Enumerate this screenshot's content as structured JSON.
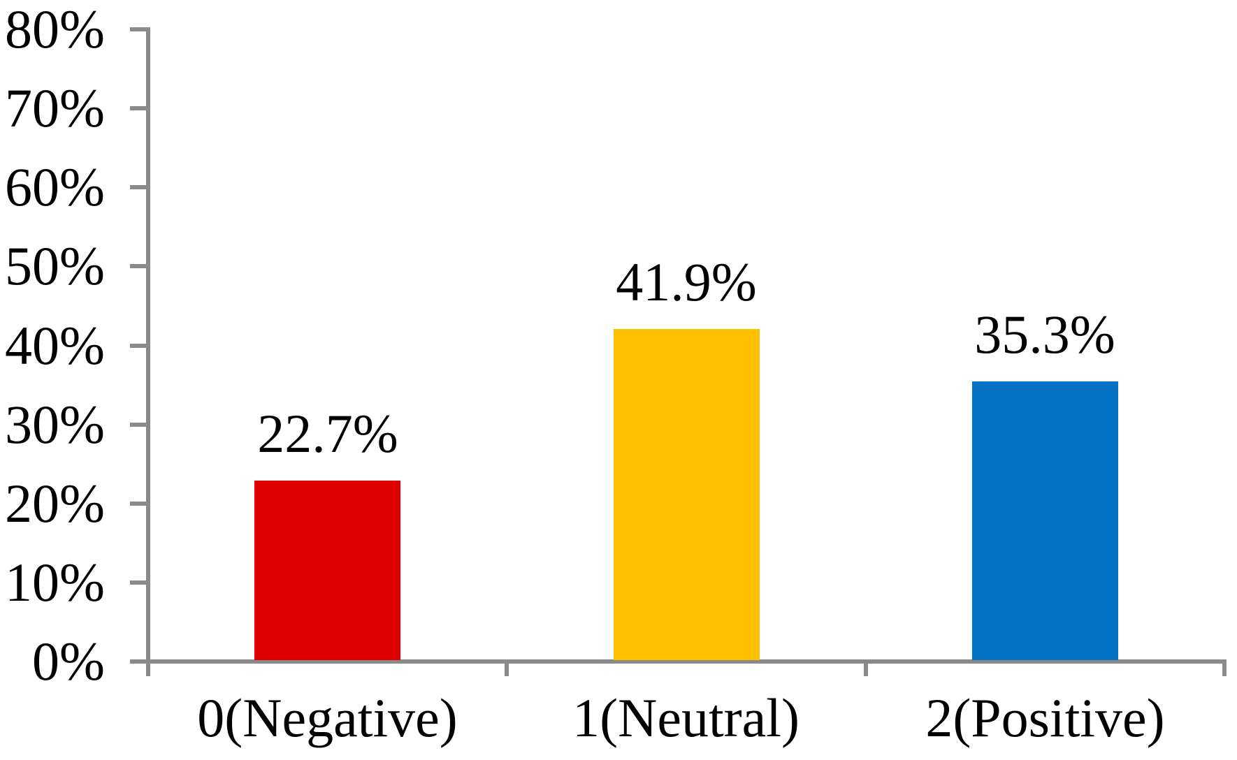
{
  "chart_data": {
    "type": "bar",
    "title": "",
    "xlabel": "",
    "ylabel": "",
    "categories": [
      "0(Negative)",
      "1(Neutral)",
      "2(Positive)"
    ],
    "values": [
      22.7,
      41.9,
      35.3
    ],
    "value_labels": [
      "22.7%",
      "41.9%",
      "35.3%"
    ],
    "bar_colors": [
      "#DE0000",
      "#FFC000",
      "#0571C4"
    ],
    "ylim": [
      0,
      80
    ],
    "ytick_step": 10,
    "ytick_labels": [
      "0%",
      "10%",
      "20%",
      "30%",
      "40%",
      "50%",
      "60%",
      "70%",
      "80%"
    ],
    "grid": false,
    "legend_position": "none",
    "axis_color": "#8A8A8A",
    "label_color": "#000000"
  }
}
